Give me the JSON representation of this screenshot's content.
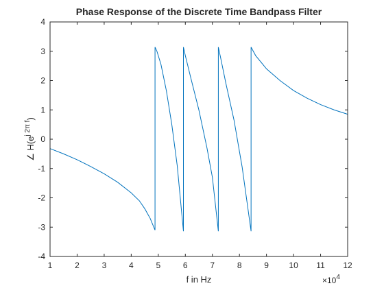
{
  "chart_data": {
    "type": "line",
    "title": "Phase Response of the Discrete Time Bandpass Filter",
    "xlabel": "f in Hz",
    "ylabel_prefix": "∠ H(e",
    "ylabel_sup": "j 2π f",
    "ylabel_suffix": ")",
    "x_exponent_base": "×10",
    "x_exponent_power": "4",
    "xlim": [
      1,
      12
    ],
    "ylim": [
      -4,
      4
    ],
    "xticks": [
      "1",
      "2",
      "3",
      "4",
      "5",
      "6",
      "7",
      "8",
      "9",
      "10",
      "11",
      "12"
    ],
    "yticks": [
      "-4",
      "-3",
      "-2",
      "-1",
      "0",
      "1",
      "2",
      "3",
      "4"
    ],
    "grid": false,
    "line_color": "#0072BD",
    "series": [
      {
        "x": [
          1.0,
          1.5,
          2.0,
          2.5,
          3.0,
          3.5,
          4.0,
          4.3,
          4.5,
          4.7,
          4.88,
          4.88,
          4.95,
          5.1,
          5.3,
          5.5,
          5.7,
          5.93,
          5.93,
          6.0,
          6.2,
          6.5,
          6.8,
          7.0,
          7.22,
          7.22,
          7.3,
          7.5,
          7.8,
          8.1,
          8.43,
          8.43,
          8.6,
          9.0,
          9.5,
          10.0,
          10.5,
          11.0,
          11.5,
          12.0
        ],
        "y": [
          -0.32,
          -0.5,
          -0.7,
          -0.93,
          -1.18,
          -1.47,
          -1.83,
          -2.1,
          -2.37,
          -2.7,
          -3.1,
          3.14,
          3.0,
          2.55,
          1.65,
          0.5,
          -0.9,
          -3.14,
          3.14,
          2.85,
          2.1,
          1.0,
          -0.3,
          -1.3,
          -3.14,
          3.14,
          2.8,
          1.9,
          0.65,
          -0.95,
          -3.14,
          3.14,
          2.85,
          2.4,
          2.0,
          1.66,
          1.4,
          1.18,
          1.0,
          0.85
        ]
      }
    ]
  }
}
